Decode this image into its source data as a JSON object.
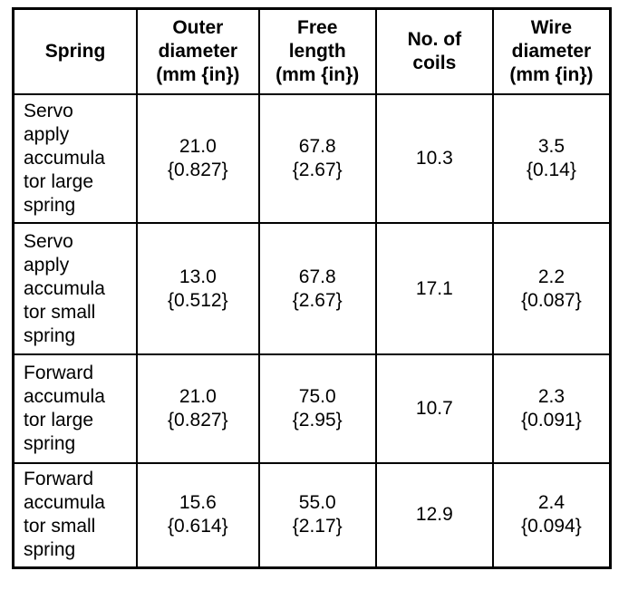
{
  "table": {
    "header": [
      "Spring",
      "Outer\ndiameter\n(mm {in})",
      "Free\nlength\n(mm {in})",
      "No. of\ncoils",
      "Wire\ndiameter\n(mm {in})"
    ],
    "rows": [
      [
        "Servo\napply\naccumula\ntor large\nspring",
        "21.0\n{0.827}",
        "67.8\n{2.67}",
        "10.3",
        "3.5\n{0.14}"
      ],
      [
        "Servo\napply\naccumula\ntor small\nspring",
        "13.0\n{0.512}",
        "67.8\n{2.67}",
        "17.1",
        "2.2\n{0.087}"
      ],
      [
        "Forward\naccumula\ntor large\nspring",
        "21.0\n{0.827}",
        "75.0\n{2.95}",
        "10.7",
        "2.3\n{0.091}"
      ],
      [
        "Forward\naccumula\ntor small\nspring",
        "15.6\n{0.614}",
        "55.0\n{2.17}",
        "12.9",
        "2.4\n{0.094}"
      ]
    ]
  }
}
